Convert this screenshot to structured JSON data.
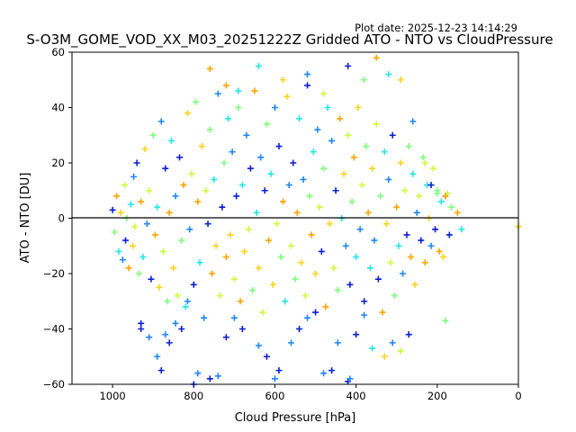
{
  "chart_data": {
    "type": "scatter",
    "title": "S-O3M_GOME_VOD_XX_M03_20251222Z Gridded ATO - NTO vs CloudPressure",
    "subtitle": "Plot date: 2025-12-23 14:14:29",
    "xlabel": "Cloud Pressure [hPa]",
    "ylabel": "ATO - NTO [DU]",
    "xlim": [
      1100,
      0
    ],
    "ylim": [
      -60,
      60
    ],
    "x_inverted": true,
    "xticks": [
      1000,
      800,
      600,
      400,
      200,
      0
    ],
    "yticks": [
      -60,
      -40,
      -20,
      0,
      20,
      40,
      60
    ],
    "xtick_labels": [
      "1000",
      "800",
      "600",
      "400",
      "200",
      "0"
    ],
    "ytick_labels": [
      "−60",
      "−40",
      "−20",
      "0",
      "20",
      "40",
      "60"
    ],
    "grid": false,
    "legend": null,
    "reference_line": {
      "y": 0,
      "color": "#000000"
    },
    "marker": "+",
    "colors": [
      "#0a1fd6",
      "#1f86f5",
      "#22e6e6",
      "#7dff7a",
      "#c7ff38",
      "#ffd21a",
      "#ffa400"
    ],
    "series": [
      {
        "points": [
          [
            1000,
            3
          ],
          [
            995,
            -5
          ],
          [
            990,
            8
          ],
          [
            985,
            -12
          ],
          [
            980,
            2
          ],
          [
            975,
            -15
          ],
          [
            970,
            12
          ],
          [
            968,
            -8
          ],
          [
            965,
            0
          ],
          [
            960,
            -18
          ],
          [
            955,
            5
          ],
          [
            950,
            -10
          ],
          [
            948,
            15
          ],
          [
            945,
            -3
          ],
          [
            940,
            20
          ],
          [
            935,
            -20
          ],
          [
            930,
            6
          ],
          [
            925,
            -14
          ],
          [
            920,
            25
          ],
          [
            915,
            -2
          ],
          [
            910,
            10
          ],
          [
            905,
            -22
          ],
          [
            900,
            30
          ],
          [
            895,
            -6
          ],
          [
            890,
            4
          ],
          [
            885,
            -25
          ],
          [
            880,
            35
          ],
          [
            875,
            -12
          ],
          [
            870,
            18
          ],
          [
            865,
            -30
          ],
          [
            860,
            2
          ],
          [
            855,
            28
          ],
          [
            850,
            -18
          ],
          [
            845,
            8
          ],
          [
            840,
            -28
          ],
          [
            835,
            22
          ],
          [
            830,
            -8
          ],
          [
            825,
            12
          ],
          [
            820,
            -32
          ],
          [
            815,
            38
          ],
          [
            810,
            -4
          ],
          [
            805,
            16
          ],
          [
            800,
            -24
          ],
          [
            795,
            42
          ],
          [
            790,
            6
          ],
          [
            785,
            -16
          ],
          [
            780,
            26
          ],
          [
            775,
            -36
          ],
          [
            770,
            10
          ],
          [
            765,
            -2
          ],
          [
            760,
            32
          ],
          [
            755,
            -20
          ],
          [
            750,
            14
          ],
          [
            745,
            -10
          ],
          [
            740,
            45
          ],
          [
            735,
            -28
          ],
          [
            730,
            4
          ],
          [
            725,
            20
          ],
          [
            720,
            -14
          ],
          [
            715,
            36
          ],
          [
            710,
            -6
          ],
          [
            705,
            24
          ],
          [
            700,
            -22
          ],
          [
            695,
            8
          ],
          [
            690,
            40
          ],
          [
            685,
            -30
          ],
          [
            680,
            12
          ],
          [
            675,
            -12
          ],
          [
            670,
            30
          ],
          [
            665,
            -4
          ],
          [
            660,
            18
          ],
          [
            655,
            -26
          ],
          [
            650,
            46
          ],
          [
            645,
            2
          ],
          [
            640,
            -18
          ],
          [
            635,
            22
          ],
          [
            630,
            -34
          ],
          [
            625,
            10
          ],
          [
            620,
            34
          ],
          [
            615,
            -8
          ],
          [
            610,
            16
          ],
          [
            605,
            -24
          ],
          [
            600,
            40
          ],
          [
            595,
            -2
          ],
          [
            590,
            26
          ],
          [
            585,
            -14
          ],
          [
            580,
            6
          ],
          [
            575,
            -30
          ],
          [
            570,
            44
          ],
          [
            565,
            12
          ],
          [
            560,
            -10
          ],
          [
            555,
            20
          ],
          [
            550,
            -22
          ],
          [
            545,
            2
          ],
          [
            540,
            36
          ],
          [
            535,
            -16
          ],
          [
            530,
            14
          ],
          [
            525,
            -28
          ],
          [
            520,
            48
          ],
          [
            515,
            8
          ],
          [
            510,
            -6
          ],
          [
            505,
            24
          ],
          [
            500,
            -20
          ],
          [
            495,
            32
          ],
          [
            490,
            4
          ],
          [
            485,
            -12
          ],
          [
            480,
            18
          ],
          [
            475,
            -32
          ],
          [
            470,
            40
          ],
          [
            465,
            -2
          ],
          [
            460,
            28
          ],
          [
            455,
            -18
          ],
          [
            450,
            10
          ],
          [
            445,
            -26
          ],
          [
            440,
            36
          ],
          [
            435,
            0
          ],
          [
            430,
            16
          ],
          [
            425,
            -10
          ],
          [
            420,
            30
          ],
          [
            415,
            -24
          ],
          [
            410,
            6
          ],
          [
            405,
            22
          ],
          [
            400,
            -14
          ],
          [
            395,
            40
          ],
          [
            390,
            -4
          ],
          [
            385,
            12
          ],
          [
            380,
            -30
          ],
          [
            375,
            26
          ],
          [
            370,
            2
          ],
          [
            365,
            -18
          ],
          [
            360,
            18
          ],
          [
            355,
            -8
          ],
          [
            350,
            34
          ],
          [
            345,
            -22
          ],
          [
            340,
            8
          ],
          [
            335,
            -34
          ],
          [
            330,
            24
          ],
          [
            325,
            -2
          ],
          [
            320,
            14
          ],
          [
            315,
            -16
          ],
          [
            310,
            30
          ],
          [
            305,
            -28
          ],
          [
            300,
            4
          ],
          [
            295,
            -10
          ],
          [
            290,
            20
          ],
          [
            285,
            -20
          ],
          [
            280,
            10
          ],
          [
            275,
            -6
          ],
          [
            270,
            26
          ],
          [
            265,
            -14
          ],
          [
            260,
            16
          ],
          [
            255,
            -24
          ],
          [
            250,
            2
          ],
          [
            245,
            8
          ],
          [
            240,
            -8
          ],
          [
            235,
            22
          ],
          [
            230,
            -16
          ],
          [
            225,
            12
          ],
          [
            220,
            0
          ],
          [
            215,
            -10
          ],
          [
            210,
            18
          ],
          [
            205,
            -4
          ],
          [
            200,
            10
          ],
          [
            195,
            -12
          ],
          [
            190,
            6
          ],
          [
            185,
            -14
          ],
          [
            180,
            8
          ],
          [
            175,
            9
          ],
          [
            170,
            -6
          ],
          [
            165,
            4
          ],
          [
            150,
            2
          ],
          [
            140,
            -4
          ],
          [
            0,
            -3
          ]
        ]
      },
      {
        "points": [
          [
            890,
            -50
          ],
          [
            880,
            -55
          ],
          [
            870,
            -42
          ],
          [
            860,
            -45
          ],
          [
            845,
            -38
          ],
          [
            830,
            -40
          ],
          [
            815,
            -30
          ],
          [
            800,
            -60
          ],
          [
            790,
            -56
          ],
          [
            760,
            -58
          ],
          [
            740,
            -57
          ],
          [
            720,
            -43
          ],
          [
            700,
            -36
          ],
          [
            680,
            -40
          ],
          [
            640,
            -46
          ],
          [
            620,
            -50
          ],
          [
            600,
            -58
          ],
          [
            590,
            -55
          ],
          [
            560,
            -45
          ],
          [
            540,
            -40
          ],
          [
            520,
            -36
          ],
          [
            500,
            -34
          ],
          [
            480,
            -56
          ],
          [
            460,
            -55
          ],
          [
            445,
            -45
          ],
          [
            420,
            -59
          ],
          [
            415,
            -58
          ],
          [
            400,
            -42
          ],
          [
            380,
            -35
          ],
          [
            930,
            -40
          ],
          [
            910,
            -43
          ],
          [
            930,
            -38
          ]
        ]
      },
      {
        "points": [
          [
            760,
            54
          ],
          [
            640,
            55
          ],
          [
            580,
            50
          ],
          [
            520,
            52
          ],
          [
            480,
            45
          ],
          [
            420,
            55
          ],
          [
            380,
            50
          ],
          [
            350,
            58
          ],
          [
            320,
            52
          ],
          [
            290,
            50
          ],
          [
            260,
            35
          ],
          [
            230,
            20
          ],
          [
            215,
            12
          ],
          [
            200,
            9
          ],
          [
            180,
            8
          ],
          [
            360,
            -47
          ],
          [
            330,
            -50
          ],
          [
            310,
            -45
          ],
          [
            290,
            -48
          ],
          [
            270,
            -42
          ],
          [
            180,
            -37
          ],
          [
            720,
            48
          ],
          [
            690,
            46
          ]
        ]
      }
    ]
  }
}
